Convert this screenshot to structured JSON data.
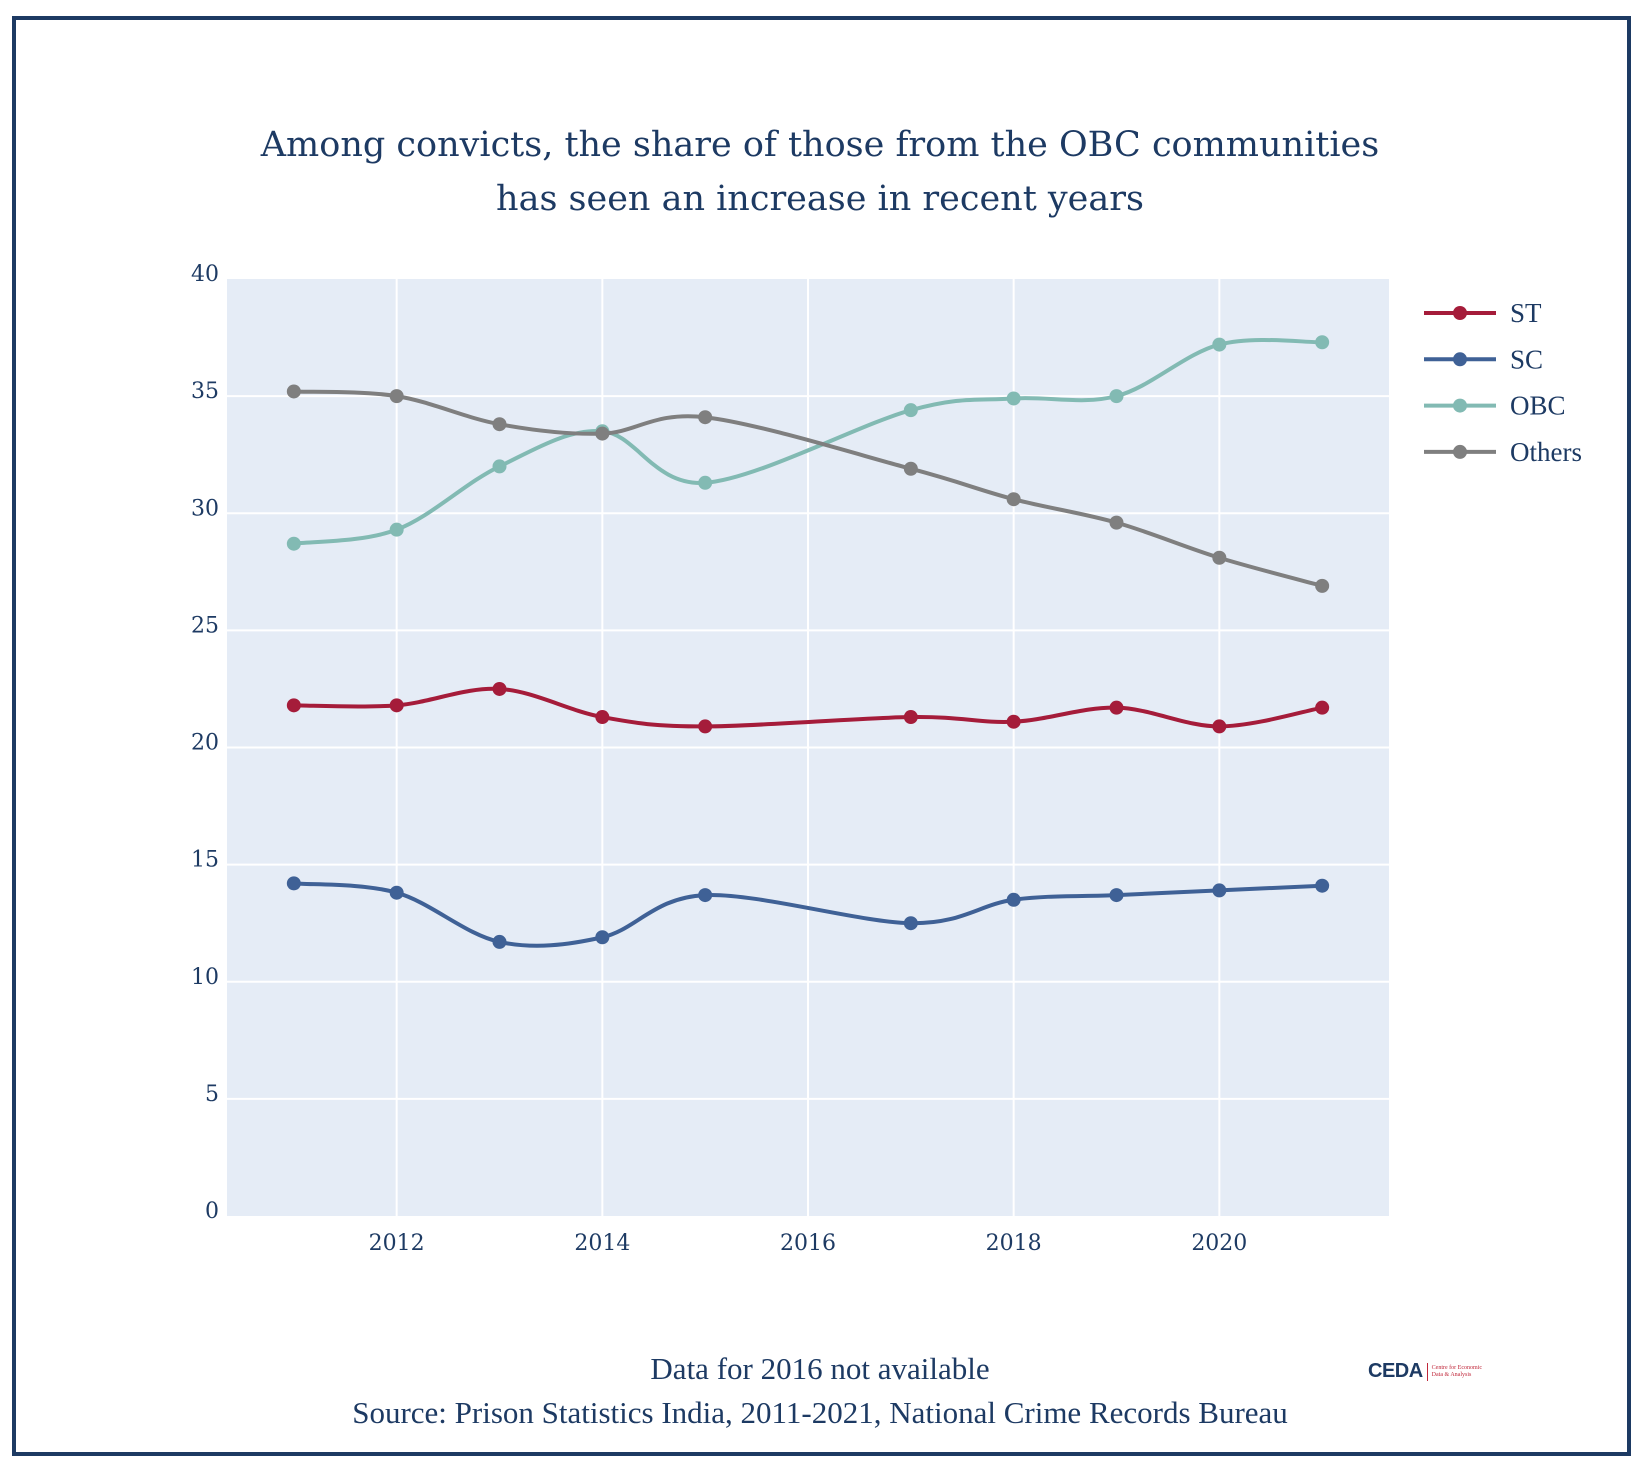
{
  "title_lines": [
    "Among convicts, the share of those from the OBC communities",
    "has seen an increase in recent years"
  ],
  "footer": {
    "note": "Data for 2016 not available",
    "source": "Source: Prison Statistics India, 2011-2021, National Crime Records Bureau"
  },
  "logo": {
    "mark": "CEDA",
    "line1": "Centre for Economic",
    "line2": "Data & Analysis"
  },
  "chart_data": {
    "type": "line",
    "title": "Among convicts, the share of those from the OBC communities has seen an increase in recent years",
    "xlabel": "",
    "ylabel": "",
    "x": [
      2011,
      2012,
      2013,
      2014,
      2015,
      2017,
      2018,
      2019,
      2020,
      2021
    ],
    "xlim": [
      2010.35,
      2021.65
    ],
    "ylim": [
      0,
      40
    ],
    "xticks": [
      2012,
      2014,
      2016,
      2018,
      2020
    ],
    "yticks": [
      0,
      5,
      10,
      15,
      20,
      25,
      30,
      35,
      40
    ],
    "grid": true,
    "legend_position": "right-top",
    "line_shape": "spline",
    "plot_bg": "#e5ecf6",
    "series": [
      {
        "name": "ST",
        "color": "#a51c3a",
        "values": [
          21.8,
          21.8,
          22.5,
          21.3,
          20.9,
          21.3,
          21.1,
          21.7,
          20.9,
          21.7
        ]
      },
      {
        "name": "SC",
        "color": "#3f6196",
        "values": [
          14.2,
          13.8,
          11.7,
          11.9,
          13.7,
          12.5,
          13.5,
          13.7,
          13.9,
          14.1
        ]
      },
      {
        "name": "OBC",
        "color": "#82bab3",
        "values": [
          28.7,
          29.3,
          32.0,
          33.5,
          31.3,
          34.4,
          34.9,
          35.0,
          37.2,
          37.3
        ]
      },
      {
        "name": "Others",
        "color": "#7f7f7f",
        "values": [
          35.2,
          35.0,
          33.8,
          33.4,
          34.1,
          31.9,
          30.6,
          29.6,
          28.1,
          26.9
        ]
      }
    ]
  }
}
